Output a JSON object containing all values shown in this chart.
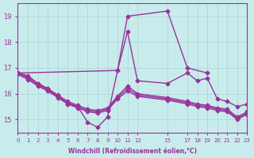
{
  "xlabel": "Windchill (Refroidissement éolien,°C)",
  "background_color": "#c8ecec",
  "grid_color": "#aad4d4",
  "line_color": "#993399",
  "xlim": [
    0,
    23
  ],
  "ylim": [
    14.5,
    19.5
  ],
  "yticks": [
    15,
    16,
    17,
    18,
    19
  ],
  "xtick_positions": [
    0,
    1,
    2,
    3,
    4,
    5,
    6,
    7,
    8,
    9,
    10,
    11,
    12,
    15,
    17,
    18,
    19,
    20,
    21,
    22,
    23
  ],
  "xtick_labels": [
    "0",
    "1",
    "2",
    "3",
    "4",
    "5",
    "6",
    "7",
    "8",
    "9",
    "10",
    "11",
    "12",
    "15",
    "17",
    "18",
    "19",
    "20",
    "21",
    "22",
    "23"
  ],
  "series": [
    {
      "x": [
        0,
        1,
        2,
        3,
        4,
        5,
        6,
        7,
        8,
        9,
        10,
        11,
        12,
        15,
        17,
        18,
        19,
        20,
        21,
        22,
        23
      ],
      "y": [
        16.8,
        16.7,
        16.4,
        16.2,
        15.9,
        15.6,
        15.5,
        14.9,
        14.7,
        15.1,
        16.9,
        18.4,
        16.5,
        16.4,
        16.8,
        16.5,
        16.6,
        15.8,
        15.7,
        15.5,
        15.6
      ]
    },
    {
      "x": [
        0,
        1,
        2,
        3,
        4,
        5,
        6,
        7,
        8,
        9,
        10,
        11,
        12,
        15,
        17,
        18,
        19,
        20,
        21,
        22,
        23
      ],
      "y": [
        16.8,
        16.65,
        16.4,
        16.2,
        15.95,
        15.7,
        15.55,
        15.4,
        15.35,
        15.45,
        15.9,
        16.3,
        16.0,
        15.85,
        15.7,
        15.6,
        15.55,
        15.45,
        15.4,
        15.1,
        15.3
      ]
    },
    {
      "x": [
        0,
        1,
        2,
        3,
        4,
        5,
        6,
        7,
        8,
        9,
        10,
        11,
        12,
        15,
        17,
        18,
        19,
        20,
        21,
        22,
        23
      ],
      "y": [
        16.8,
        16.6,
        16.35,
        16.15,
        15.9,
        15.65,
        15.5,
        15.35,
        15.3,
        15.4,
        15.85,
        16.2,
        15.95,
        15.8,
        15.65,
        15.55,
        15.5,
        15.4,
        15.35,
        15.05,
        15.25
      ]
    },
    {
      "x": [
        0,
        1,
        2,
        3,
        4,
        5,
        6,
        7,
        8,
        9,
        10,
        11,
        12,
        15,
        17,
        18,
        19,
        20,
        21,
        22,
        23
      ],
      "y": [
        16.75,
        16.55,
        16.3,
        16.1,
        15.85,
        15.6,
        15.45,
        15.3,
        15.25,
        15.35,
        15.8,
        16.1,
        15.9,
        15.75,
        15.6,
        15.5,
        15.45,
        15.35,
        15.3,
        15.0,
        15.2
      ]
    },
    {
      "x": [
        0,
        10,
        11,
        15,
        17,
        19
      ],
      "y": [
        16.8,
        16.9,
        19.0,
        19.2,
        17.0,
        16.8
      ]
    }
  ],
  "marker": "D",
  "markersize": 2.5,
  "linewidth": 1.0
}
